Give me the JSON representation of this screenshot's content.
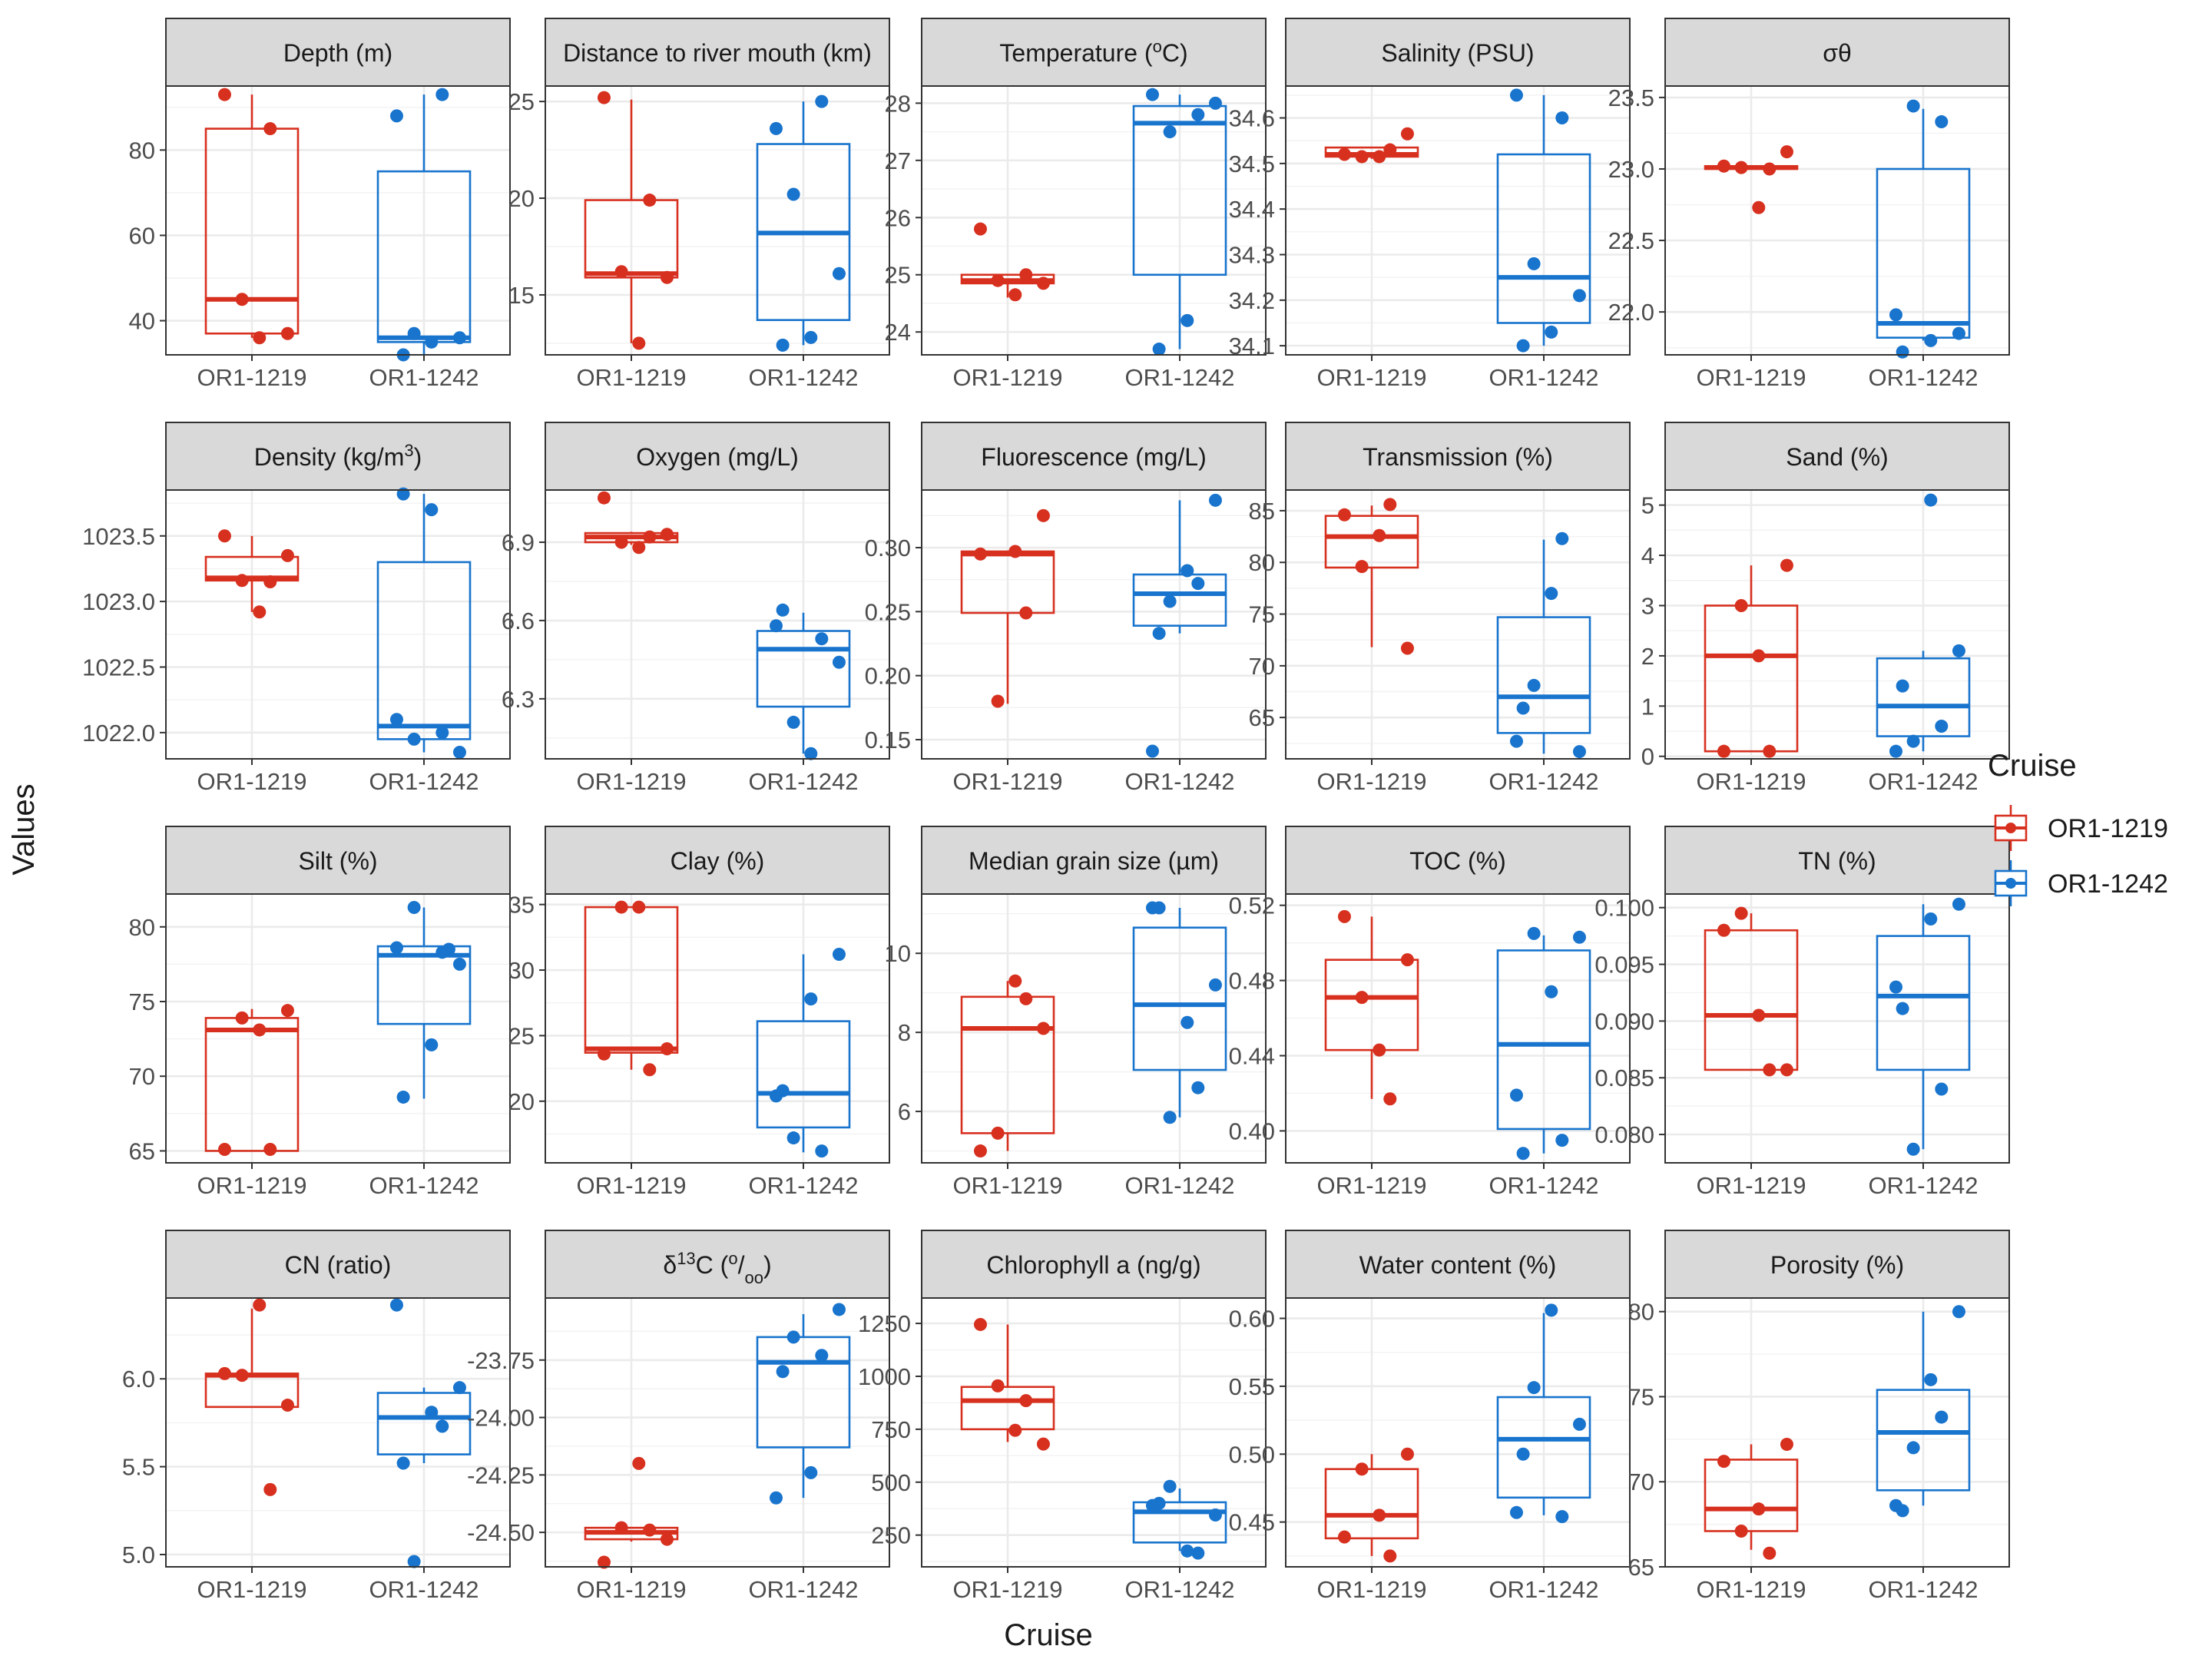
{
  "figure": {
    "xlabel": "Cruise",
    "ylabel": "Values",
    "legend": {
      "title": "Cruise",
      "position": "right",
      "entries": [
        {
          "name": "OR1-1219",
          "color": "#D7301F"
        },
        {
          "name": "OR1-1242",
          "color": "#1874CD"
        }
      ]
    }
  },
  "chart_data": [
    {
      "type": "box",
      "title": "Depth (m)",
      "categories": [
        "OR1-1219",
        "OR1-1242"
      ],
      "ylim": [
        32,
        95
      ],
      "yticks": [
        40,
        60,
        80
      ],
      "boxes": [
        {
          "min": 36,
          "q1": 37,
          "median": 45,
          "q3": 85,
          "max": 93,
          "points": [
            93,
            85,
            45,
            37,
            36
          ]
        },
        {
          "min": 32,
          "q1": 35,
          "median": 36,
          "q3": 75,
          "max": 93,
          "points": [
            88,
            93,
            37,
            36,
            35,
            32
          ]
        }
      ]
    },
    {
      "type": "box",
      "title": "Distance to river mouth (km)",
      "categories": [
        "OR1-1219",
        "OR1-1242"
      ],
      "ylim": [
        11.9,
        25.8
      ],
      "yticks": [
        15,
        20,
        25
      ],
      "boxes": [
        {
          "min": 12.5,
          "q1": 15.9,
          "median": 16.1,
          "q3": 19.9,
          "max": 25.1,
          "points": [
            25.2,
            19.9,
            16.2,
            15.9,
            12.5
          ]
        },
        {
          "min": 12.4,
          "q1": 13.7,
          "median": 18.2,
          "q3": 22.8,
          "max": 25.0,
          "points": [
            23.6,
            25.0,
            20.2,
            16.1,
            12.8,
            12.4
          ]
        }
      ]
    },
    {
      "type": "box",
      "title": "Temperature (°C)",
      "categories": [
        "OR1-1219",
        "OR1-1242"
      ],
      "ylim": [
        23.6,
        28.3
      ],
      "yticks": [
        24,
        25,
        26,
        27,
        28
      ],
      "boxes": [
        {
          "min": 24.6,
          "q1": 24.85,
          "median": 24.9,
          "q3": 25.0,
          "max": 25.0,
          "points": [
            25.8,
            25.0,
            24.9,
            24.85,
            24.65
          ]
        },
        {
          "min": 23.7,
          "q1": 25.0,
          "median": 27.65,
          "q3": 27.95,
          "max": 28.15,
          "points": [
            28.15,
            27.8,
            27.5,
            28.0,
            24.2,
            23.7
          ]
        }
      ]
    },
    {
      "type": "box",
      "title": "Salinity (PSU)",
      "categories": [
        "OR1-1219",
        "OR1-1242"
      ],
      "ylim": [
        34.08,
        34.67
      ],
      "yticks": [
        34.1,
        34.2,
        34.3,
        34.4,
        34.5,
        34.6
      ],
      "boxes": [
        {
          "min": 34.51,
          "q1": 34.515,
          "median": 34.52,
          "q3": 34.535,
          "max": 34.535,
          "points": [
            34.52,
            34.53,
            34.515,
            34.565,
            34.515
          ]
        },
        {
          "min": 34.1,
          "q1": 34.15,
          "median": 34.25,
          "q3": 34.52,
          "max": 34.65,
          "points": [
            34.65,
            34.6,
            34.28,
            34.21,
            34.13,
            34.1
          ]
        }
      ]
    },
    {
      "type": "box",
      "title": "σθ",
      "categories": [
        "OR1-1219",
        "OR1-1242"
      ],
      "ylim": [
        21.7,
        23.58
      ],
      "yticks": [
        22.0,
        22.5,
        23.0,
        23.5
      ],
      "boxes": [
        {
          "min": 23.0,
          "q1": 23.0,
          "median": 23.01,
          "q3": 23.02,
          "max": 23.02,
          "points": [
            23.02,
            23.0,
            23.01,
            23.12,
            22.73
          ]
        },
        {
          "min": 21.8,
          "q1": 21.82,
          "median": 21.92,
          "q3": 23.0,
          "max": 23.42,
          "points": [
            21.98,
            23.33,
            23.44,
            21.85,
            21.8,
            21.72
          ]
        }
      ]
    },
    {
      "type": "box",
      "title": "Density (kg/m³)",
      "categories": [
        "OR1-1219",
        "OR1-1242"
      ],
      "ylim": [
        1021.8,
        1023.85
      ],
      "yticks": [
        1022.0,
        1022.5,
        1023.0,
        1023.5
      ],
      "boxes": [
        {
          "min": 1022.92,
          "q1": 1023.16,
          "median": 1023.18,
          "q3": 1023.34,
          "max": 1023.5,
          "points": [
            1023.5,
            1023.15,
            1023.16,
            1023.35,
            1022.92
          ]
        },
        {
          "min": 1021.85,
          "q1": 1021.95,
          "median": 1022.05,
          "q3": 1023.3,
          "max": 1023.82,
          "points": [
            1022.1,
            1022.0,
            1021.95,
            1021.85,
            1023.7,
            1023.82
          ]
        }
      ]
    },
    {
      "type": "box",
      "title": "Oxygen (mg/L)",
      "categories": [
        "OR1-1219",
        "OR1-1242"
      ],
      "ylim": [
        6.07,
        7.1
      ],
      "yticks": [
        6.3,
        6.6,
        6.9
      ],
      "boxes": [
        {
          "min": 6.89,
          "q1": 6.9,
          "median": 6.92,
          "q3": 6.935,
          "max": 6.94,
          "points": [
            7.07,
            6.92,
            6.9,
            6.93,
            6.88
          ]
        },
        {
          "min": 6.09,
          "q1": 6.27,
          "median": 6.49,
          "q3": 6.56,
          "max": 6.63,
          "points": [
            6.58,
            6.53,
            6.21,
            6.44,
            6.09,
            6.64
          ]
        }
      ]
    },
    {
      "type": "box",
      "title": "Fluorescence (mg/L)",
      "categories": [
        "OR1-1219",
        "OR1-1242"
      ],
      "ylim": [
        0.135,
        0.345
      ],
      "yticks": [
        0.15,
        0.2,
        0.25,
        0.3
      ],
      "boxes": [
        {
          "min": 0.178,
          "q1": 0.249,
          "median": 0.295,
          "q3": 0.297,
          "max": 0.297,
          "points": [
            0.295,
            0.249,
            0.18,
            0.325,
            0.297
          ]
        },
        {
          "min": 0.233,
          "q1": 0.239,
          "median": 0.264,
          "q3": 0.279,
          "max": 0.337,
          "points": [
            0.141,
            0.272,
            0.258,
            0.337,
            0.282,
            0.233
          ]
        }
      ]
    },
    {
      "type": "box",
      "title": "Transmission (%)",
      "categories": [
        "OR1-1219",
        "OR1-1242"
      ],
      "ylim": [
        61,
        87
      ],
      "yticks": [
        65,
        70,
        75,
        80,
        85
      ],
      "boxes": [
        {
          "min": 71.8,
          "q1": 79.5,
          "median": 82.5,
          "q3": 84.5,
          "max": 85.5,
          "points": [
            84.6,
            85.6,
            79.6,
            71.7,
            82.6
          ]
        },
        {
          "min": 61.5,
          "q1": 63.5,
          "median": 67.0,
          "q3": 74.7,
          "max": 82.2,
          "points": [
            62.7,
            82.3,
            68.1,
            61.7,
            77.0,
            65.9
          ]
        }
      ]
    },
    {
      "type": "box",
      "title": "Sand (%)",
      "categories": [
        "OR1-1219",
        "OR1-1242"
      ],
      "ylim": [
        -0.05,
        5.3
      ],
      "yticks": [
        0,
        1,
        2,
        3,
        4,
        5
      ],
      "boxes": [
        {
          "min": 0.1,
          "q1": 0.1,
          "median": 2.0,
          "q3": 3.0,
          "max": 3.8,
          "points": [
            0.1,
            0.1,
            3.0,
            3.8,
            2.0
          ]
        },
        {
          "min": 0.1,
          "q1": 0.4,
          "median": 1.0,
          "q3": 1.95,
          "max": 2.1,
          "points": [
            0.1,
            0.6,
            0.3,
            2.1,
            5.1,
            1.4
          ]
        }
      ]
    },
    {
      "type": "box",
      "title": "Silt (%)",
      "categories": [
        "OR1-1219",
        "OR1-1242"
      ],
      "ylim": [
        64.2,
        82.2
      ],
      "yticks": [
        65,
        70,
        75,
        80
      ],
      "boxes": [
        {
          "min": 65.0,
          "q1": 65.0,
          "median": 73.1,
          "q3": 73.9,
          "max": 74.5,
          "points": [
            65.1,
            65.1,
            73.9,
            74.4,
            73.1
          ]
        },
        {
          "min": 68.5,
          "q1": 73.5,
          "median": 78.1,
          "q3": 78.7,
          "max": 81.3,
          "points": [
            78.6,
            78.3,
            81.3,
            77.5,
            72.1,
            68.6,
            78.5
          ]
        }
      ]
    },
    {
      "type": "box",
      "title": "Clay (%)",
      "categories": [
        "OR1-1219",
        "OR1-1242"
      ],
      "ylim": [
        15.3,
        35.8
      ],
      "yticks": [
        20,
        25,
        30,
        35
      ],
      "boxes": [
        {
          "min": 22.4,
          "q1": 23.7,
          "median": 24.0,
          "q3": 34.8,
          "max": 34.8,
          "points": [
            23.6,
            22.4,
            34.8,
            24.0,
            34.8
          ]
        },
        {
          "min": 16.1,
          "q1": 18.0,
          "median": 20.6,
          "q3": 26.1,
          "max": 31.2,
          "points": [
            20.4,
            16.2,
            17.2,
            31.2,
            27.8,
            20.8
          ]
        }
      ]
    },
    {
      "type": "box",
      "title": "Median grain size (µm)",
      "categories": [
        "OR1-1219",
        "OR1-1242"
      ],
      "ylim": [
        4.7,
        11.5
      ],
      "yticks": [
        6,
        8,
        10
      ],
      "boxes": [
        {
          "min": 5.0,
          "q1": 5.45,
          "median": 8.1,
          "q3": 8.9,
          "max": 9.3,
          "points": [
            5.0,
            8.85,
            5.45,
            8.1,
            9.3
          ]
        },
        {
          "min": 5.85,
          "q1": 7.05,
          "median": 8.7,
          "q3": 10.65,
          "max": 11.15,
          "points": [
            11.15,
            6.6,
            5.85,
            9.2,
            8.25,
            11.15
          ]
        }
      ]
    },
    {
      "type": "box",
      "title": "TOC (%)",
      "categories": [
        "OR1-1219",
        "OR1-1242"
      ],
      "ylim": [
        0.383,
        0.526
      ],
      "yticks": [
        0.4,
        0.44,
        0.48,
        0.52
      ],
      "boxes": [
        {
          "min": 0.417,
          "q1": 0.443,
          "median": 0.471,
          "q3": 0.491,
          "max": 0.514,
          "points": [
            0.514,
            0.417,
            0.471,
            0.491,
            0.443
          ]
        },
        {
          "min": 0.388,
          "q1": 0.401,
          "median": 0.446,
          "q3": 0.496,
          "max": 0.504,
          "points": [
            0.419,
            0.395,
            0.505,
            0.503,
            0.474,
            0.388
          ]
        }
      ]
    },
    {
      "type": "box",
      "title": "TN (%)",
      "categories": [
        "OR1-1219",
        "OR1-1242"
      ],
      "ylim": [
        0.0775,
        0.1012
      ],
      "yticks": [
        0.08,
        0.085,
        0.09,
        0.095,
        0.1
      ],
      "boxes": [
        {
          "min": 0.0857,
          "q1": 0.0857,
          "median": 0.0905,
          "q3": 0.098,
          "max": 0.0995,
          "points": [
            0.098,
            0.0857,
            0.0995,
            0.0857,
            0.0905
          ]
        },
        {
          "min": 0.0787,
          "q1": 0.0857,
          "median": 0.0922,
          "q3": 0.0975,
          "max": 0.1003,
          "points": [
            0.093,
            0.084,
            0.0787,
            0.1003,
            0.099,
            0.0911
          ]
        }
      ]
    },
    {
      "type": "box",
      "title": "CN (ratio)",
      "categories": [
        "OR1-1219",
        "OR1-1242"
      ],
      "ylim": [
        4.93,
        6.46
      ],
      "yticks": [
        5.0,
        5.5,
        6.0
      ],
      "boxes": [
        {
          "min": 5.84,
          "q1": 5.84,
          "median": 6.02,
          "q3": 6.03,
          "max": 6.4,
          "points": [
            6.03,
            5.37,
            6.02,
            5.85,
            6.42
          ]
        },
        {
          "min": 5.52,
          "q1": 5.57,
          "median": 5.78,
          "q3": 5.92,
          "max": 5.95,
          "points": [
            6.42,
            5.73,
            4.96,
            5.95,
            5.81,
            5.52
          ]
        }
      ]
    },
    {
      "type": "box",
      "title": "δ13C (°/oo)",
      "categories": [
        "OR1-1219",
        "OR1-1242"
      ],
      "ylim": [
        -24.65,
        -23.48
      ],
      "yticks": [
        -24.5,
        -24.25,
        -24.0,
        -23.75
      ],
      "boxes": [
        {
          "min": -24.54,
          "q1": -24.53,
          "median": -24.5,
          "q3": -24.48,
          "max": -24.48,
          "points": [
            -24.63,
            -24.49,
            -24.48,
            -24.53,
            -24.2
          ]
        },
        {
          "min": -24.35,
          "q1": -24.13,
          "median": -23.76,
          "q3": -23.65,
          "max": -23.55,
          "points": [
            -24.35,
            -23.73,
            -23.65,
            -23.53,
            -24.24,
            -23.8
          ]
        }
      ]
    },
    {
      "type": "box",
      "title": "Chlorophyll a (ng/g)",
      "categories": [
        "OR1-1219",
        "OR1-1242"
      ],
      "ylim": [
        100,
        1370
      ],
      "yticks": [
        250,
        500,
        750,
        1000,
        1250
      ],
      "boxes": [
        {
          "min": 690,
          "q1": 750,
          "median": 885,
          "q3": 950,
          "max": 1245,
          "points": [
            1245,
            885,
            955,
            680,
            745
          ]
        },
        {
          "min": 175,
          "q1": 215,
          "median": 360,
          "q3": 405,
          "max": 470,
          "points": [
            390,
            165,
            480,
            345,
            175,
            400
          ]
        }
      ]
    },
    {
      "type": "box",
      "title": "Water content (%)",
      "categories": [
        "OR1-1219",
        "OR1-1242"
      ],
      "ylim": [
        0.417,
        0.615
      ],
      "yticks": [
        0.45,
        0.5,
        0.55,
        0.6
      ],
      "boxes": [
        {
          "min": 0.425,
          "q1": 0.438,
          "median": 0.455,
          "q3": 0.489,
          "max": 0.5,
          "points": [
            0.439,
            0.425,
            0.489,
            0.5,
            0.455
          ]
        },
        {
          "min": 0.455,
          "q1": 0.468,
          "median": 0.511,
          "q3": 0.542,
          "max": 0.604,
          "points": [
            0.457,
            0.454,
            0.549,
            0.522,
            0.606,
            0.5
          ]
        }
      ]
    },
    {
      "type": "box",
      "title": "Porosity (%)",
      "categories": [
        "OR1-1219",
        "OR1-1242"
      ],
      "ylim": [
        65,
        80.8
      ],
      "yticks": [
        65,
        70,
        75,
        80
      ],
      "boxes": [
        {
          "min": 66.0,
          "q1": 67.1,
          "median": 68.4,
          "q3": 71.3,
          "max": 72.2,
          "points": [
            71.2,
            65.8,
            67.1,
            72.2,
            68.4
          ]
        },
        {
          "min": 68.6,
          "q1": 69.5,
          "median": 72.9,
          "q3": 75.4,
          "max": 80.0,
          "points": [
            68.6,
            73.8,
            72.0,
            80.0,
            76.0,
            68.3
          ]
        }
      ]
    }
  ]
}
